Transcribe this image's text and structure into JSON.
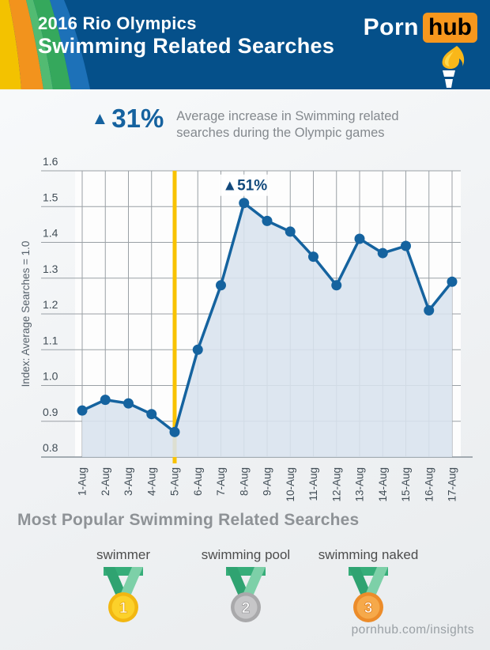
{
  "header": {
    "title_line1": "2016 Rio Olympics",
    "title_line2": "Swimming Related Searches",
    "logo": {
      "part1": "Porn",
      "part2": "hub"
    }
  },
  "callout": {
    "arrow": "▲",
    "percent": "31%",
    "desc_line1": "Average increase in Swimming related",
    "desc_line2": "searches during the Olympic games"
  },
  "chart_data": {
    "type": "line",
    "ylabel": "Index: Average Searches = 1.0",
    "x": [
      "1-Aug",
      "2-Aug",
      "3-Aug",
      "4-Aug",
      "5-Aug",
      "6-Aug",
      "7-Aug",
      "8-Aug",
      "9-Aug",
      "10-Aug",
      "11-Aug",
      "12-Aug",
      "13-Aug",
      "14-Aug",
      "15-Aug",
      "16-Aug",
      "17-Aug"
    ],
    "values": [
      0.93,
      0.96,
      0.95,
      0.92,
      0.87,
      1.1,
      1.28,
      1.51,
      1.46,
      1.43,
      1.36,
      1.28,
      1.41,
      1.37,
      1.39,
      1.21,
      1.29
    ],
    "ylim": [
      0.8,
      1.6
    ],
    "yticks": [
      0.8,
      0.9,
      1.0,
      1.1,
      1.2,
      1.3,
      1.4,
      1.5,
      1.6
    ],
    "grid": true,
    "legend": "none",
    "event_line": {
      "x": "5-Aug",
      "color": "#f8c201"
    },
    "annotation": {
      "x": "8-Aug",
      "text": "▲51%"
    },
    "line_color": "#15639f",
    "fill_color": "#d8e3ee",
    "grid_color": "#9aa0a5",
    "axis_color": "#8a949b",
    "plot_bg": "#fdfdfd"
  },
  "popular": {
    "heading": "Most Popular Swimming Related Searches",
    "items": [
      {
        "rank": "1",
        "label": "swimmer",
        "medal": "gold"
      },
      {
        "rank": "2",
        "label": "swimming pool",
        "medal": "silver"
      },
      {
        "rank": "3",
        "label": "swimming naked",
        "medal": "bronze"
      }
    ]
  },
  "footer": {
    "url": "pornhub.com/insights"
  },
  "colors": {
    "header_bg": "#05508a",
    "stripes": [
      "#f3c200",
      "#f2931d",
      "#52bb72",
      "#35a85c",
      "#1d71b8"
    ],
    "logo_box": "#f7971d",
    "stat_blue": "#15629f",
    "ribbon_dark": "#2fa371",
    "ribbon_mid": "#36ad79",
    "ribbon_light": "#7dd0a8",
    "medals": {
      "gold": {
        "ring": "#f2b711",
        "center": "#fcd12a",
        "stroke": "#e8a70c"
      },
      "silver": {
        "ring": "#a9a9ab",
        "center": "#c6c6c8",
        "stroke": "#9b9b9d"
      },
      "bronze": {
        "ring": "#ec8c2a",
        "center": "#f6a94a",
        "stroke": "#e07f1d"
      }
    }
  }
}
